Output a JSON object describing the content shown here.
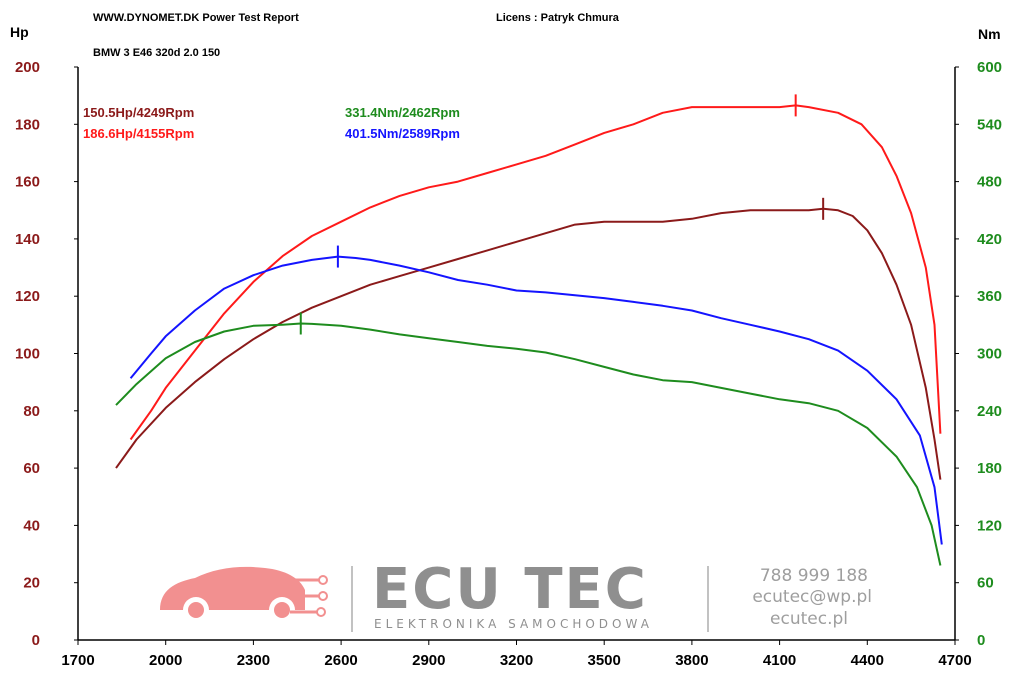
{
  "header": {
    "report": "WWW.DYNOMET.DK  Power Test Report",
    "license": "Licens :  Patryk Chmura",
    "vehicle": "BMW 3 E46 320d 2.0 150"
  },
  "watermark": {
    "brand": "ECU TEC",
    "tagline": "ELEKTRONIKA SAMOCHODOWA",
    "phone": "788 999 188",
    "email": "ecutec@wp.pl",
    "website": "ecutec.pl"
  },
  "chart_data": {
    "type": "line",
    "y_left_label": "Hp",
    "y_right_label": "Nm",
    "xlim": [
      1700,
      4700
    ],
    "ylim_left": [
      0,
      200
    ],
    "ylim_right": [
      0,
      600
    ],
    "x_ticks": [
      "1700",
      "2000",
      "2300",
      "2600",
      "2900",
      "3200",
      "3500",
      "3800",
      "4100",
      "4400",
      "4700"
    ],
    "y_left_ticks": [
      "0",
      "20",
      "40",
      "60",
      "80",
      "100",
      "120",
      "140",
      "160",
      "180",
      "200"
    ],
    "y_right_ticks": [
      "0",
      "60",
      "120",
      "180",
      "240",
      "300",
      "360",
      "420",
      "480",
      "540",
      "600"
    ],
    "annotations": [
      {
        "text": "150.5Hp/4249Rpm",
        "color": "#8b1a1a"
      },
      {
        "text": "186.6Hp/4155Rpm",
        "color": "#ff1a1a"
      },
      {
        "text": "331.4Nm/2462Rpm",
        "color": "#1e8c1e"
      },
      {
        "text": "401.5Nm/2589Rpm",
        "color": "#1414ff"
      }
    ],
    "series": [
      {
        "axis": "left",
        "color": "#8b1a1a",
        "peak_x": 4249,
        "points": [
          [
            1830,
            60
          ],
          [
            1900,
            70
          ],
          [
            2000,
            81
          ],
          [
            2100,
            90
          ],
          [
            2200,
            98
          ],
          [
            2300,
            105
          ],
          [
            2400,
            111
          ],
          [
            2500,
            116
          ],
          [
            2600,
            120
          ],
          [
            2700,
            124
          ],
          [
            2800,
            127
          ],
          [
            2900,
            130
          ],
          [
            3000,
            133
          ],
          [
            3100,
            136
          ],
          [
            3200,
            139
          ],
          [
            3300,
            142
          ],
          [
            3400,
            145
          ],
          [
            3500,
            146
          ],
          [
            3600,
            146
          ],
          [
            3700,
            146
          ],
          [
            3800,
            147
          ],
          [
            3900,
            149
          ],
          [
            4000,
            150
          ],
          [
            4100,
            150
          ],
          [
            4200,
            150
          ],
          [
            4249,
            150.5
          ],
          [
            4300,
            150
          ],
          [
            4350,
            148
          ],
          [
            4400,
            143
          ],
          [
            4450,
            135
          ],
          [
            4500,
            124
          ],
          [
            4550,
            110
          ],
          [
            4600,
            88
          ],
          [
            4630,
            70
          ],
          [
            4650,
            56
          ]
        ]
      },
      {
        "axis": "left",
        "color": "#ff1a1a",
        "peak_x": 4155,
        "points": [
          [
            1880,
            70
          ],
          [
            1950,
            80
          ],
          [
            2000,
            88
          ],
          [
            2100,
            101
          ],
          [
            2200,
            114
          ],
          [
            2300,
            125
          ],
          [
            2400,
            134
          ],
          [
            2500,
            141
          ],
          [
            2600,
            146
          ],
          [
            2700,
            151
          ],
          [
            2800,
            155
          ],
          [
            2900,
            158
          ],
          [
            3000,
            160
          ],
          [
            3100,
            163
          ],
          [
            3200,
            166
          ],
          [
            3300,
            169
          ],
          [
            3400,
            173
          ],
          [
            3500,
            177
          ],
          [
            3600,
            180
          ],
          [
            3700,
            184
          ],
          [
            3800,
            186
          ],
          [
            3900,
            186
          ],
          [
            4000,
            186
          ],
          [
            4100,
            186
          ],
          [
            4155,
            186.6
          ],
          [
            4200,
            186
          ],
          [
            4300,
            184
          ],
          [
            4380,
            180
          ],
          [
            4450,
            172
          ],
          [
            4500,
            162
          ],
          [
            4550,
            149
          ],
          [
            4600,
            130
          ],
          [
            4630,
            110
          ],
          [
            4650,
            72
          ]
        ]
      },
      {
        "axis": "right",
        "color": "#1e8c1e",
        "peak_x": 2462,
        "points": [
          [
            1830,
            246
          ],
          [
            1900,
            268
          ],
          [
            2000,
            295
          ],
          [
            2100,
            312
          ],
          [
            2200,
            323
          ],
          [
            2300,
            329
          ],
          [
            2400,
            330
          ],
          [
            2462,
            331.4
          ],
          [
            2500,
            331
          ],
          [
            2600,
            329
          ],
          [
            2700,
            325
          ],
          [
            2800,
            320
          ],
          [
            2900,
            316
          ],
          [
            3000,
            312
          ],
          [
            3100,
            308
          ],
          [
            3200,
            305
          ],
          [
            3300,
            301
          ],
          [
            3400,
            294
          ],
          [
            3500,
            286
          ],
          [
            3600,
            278
          ],
          [
            3700,
            272
          ],
          [
            3800,
            270
          ],
          [
            3900,
            264
          ],
          [
            4000,
            258
          ],
          [
            4100,
            252
          ],
          [
            4200,
            248
          ],
          [
            4300,
            240
          ],
          [
            4400,
            222
          ],
          [
            4500,
            192
          ],
          [
            4570,
            160
          ],
          [
            4620,
            120
          ],
          [
            4650,
            78
          ]
        ]
      },
      {
        "axis": "right",
        "color": "#1414ff",
        "peak_x": 2589,
        "points": [
          [
            1880,
            274
          ],
          [
            1950,
            300
          ],
          [
            2000,
            318
          ],
          [
            2100,
            345
          ],
          [
            2200,
            368
          ],
          [
            2300,
            382
          ],
          [
            2400,
            392
          ],
          [
            2500,
            398
          ],
          [
            2589,
            401.5
          ],
          [
            2650,
            400
          ],
          [
            2700,
            398
          ],
          [
            2800,
            392
          ],
          [
            2900,
            385
          ],
          [
            3000,
            377
          ],
          [
            3100,
            372
          ],
          [
            3200,
            366
          ],
          [
            3300,
            364
          ],
          [
            3400,
            361
          ],
          [
            3500,
            358
          ],
          [
            3600,
            354
          ],
          [
            3700,
            350
          ],
          [
            3800,
            345
          ],
          [
            3900,
            337
          ],
          [
            4000,
            330
          ],
          [
            4100,
            323
          ],
          [
            4200,
            315
          ],
          [
            4300,
            303
          ],
          [
            4400,
            282
          ],
          [
            4500,
            252
          ],
          [
            4580,
            214
          ],
          [
            4630,
            160
          ],
          [
            4655,
            100
          ]
        ]
      }
    ]
  }
}
